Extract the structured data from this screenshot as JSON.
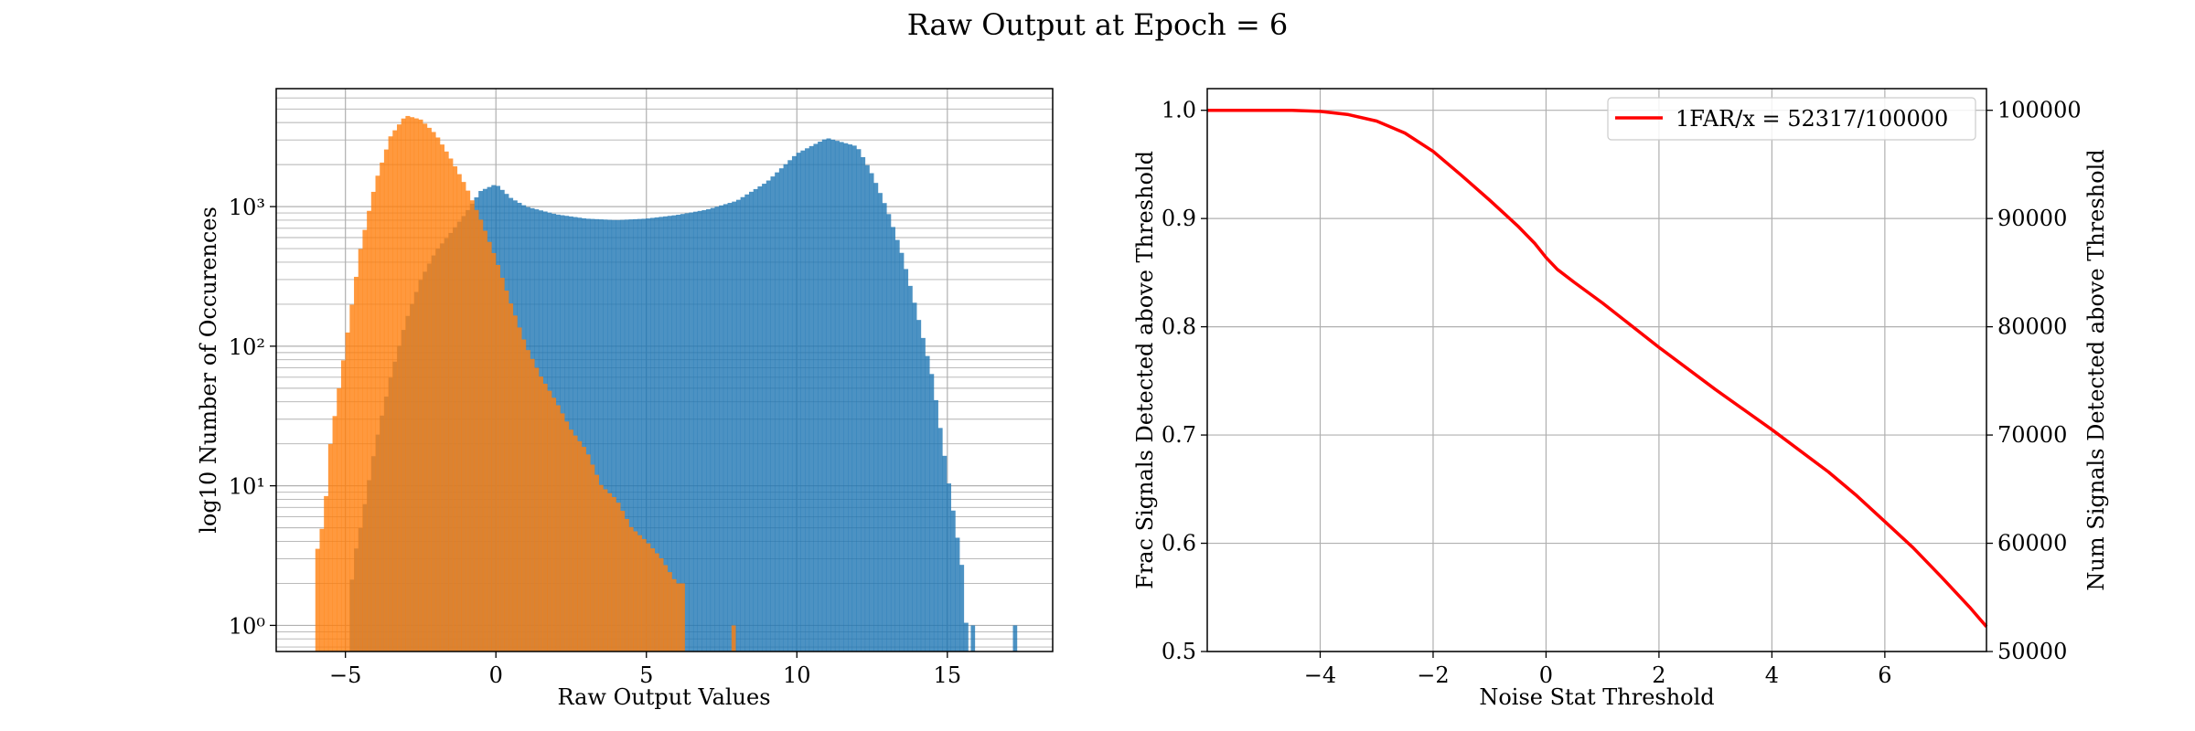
{
  "figure": {
    "title": "Raw Output at Epoch = 6"
  },
  "chart_data": [
    {
      "type": "bar",
      "subtype": "histogram",
      "xlabel": "Raw Output Values",
      "ylabel": "log10 Number of Occurences",
      "xlim": [
        -7.3,
        18.5
      ],
      "ylim": [
        0.65,
        7000
      ],
      "yscale": "log",
      "grid": true,
      "x_ticks": [
        -5,
        0,
        5,
        10,
        15
      ],
      "x_tick_labels": [
        "−5",
        "0",
        "5",
        "10",
        "15"
      ],
      "y_tick_values": [
        1,
        10,
        100,
        1000
      ],
      "y_tick_labels": [
        "10⁰",
        "10¹",
        "10²",
        "10³"
      ],
      "bin_range": [
        -6.0,
        17.4
      ],
      "bins": 164,
      "series": [
        {
          "color": "#1f77b4",
          "points": [
            [
              -5.0,
              0.0
            ],
            [
              -4.5,
              5
            ],
            [
              -4.0,
              20
            ],
            [
              -3.5,
              60
            ],
            [
              -3.0,
              150
            ],
            [
              -2.5,
              300
            ],
            [
              -2.0,
              480
            ],
            [
              -1.5,
              650
            ],
            [
              -1.0,
              900
            ],
            [
              -0.5,
              1300
            ],
            [
              0.0,
              1450
            ],
            [
              0.5,
              1150
            ],
            [
              1.0,
              1000
            ],
            [
              2.0,
              880
            ],
            [
              3.0,
              820
            ],
            [
              4.0,
              800
            ],
            [
              5.0,
              820
            ],
            [
              6.0,
              870
            ],
            [
              7.0,
              950
            ],
            [
              8.0,
              1100
            ],
            [
              9.0,
              1500
            ],
            [
              10.0,
              2400
            ],
            [
              11.0,
              3100
            ],
            [
              12.0,
              2700
            ],
            [
              12.5,
              1700
            ],
            [
              13.0,
              950
            ],
            [
              13.5,
              450
            ],
            [
              14.0,
              170
            ],
            [
              14.5,
              60
            ],
            [
              15.0,
              12
            ],
            [
              15.5,
              2.5
            ],
            [
              15.7,
              0.0
            ],
            [
              15.75,
              0.0
            ],
            [
              16.0,
              0.0
            ],
            [
              17.2,
              0.0
            ],
            [
              17.4,
              0.0
            ]
          ],
          "extra_bars": [
            [
              15.85,
              1
            ],
            [
              17.25,
              1
            ]
          ]
        },
        {
          "color": "#ff7f0e",
          "points": [
            [
              -6.0,
              3
            ],
            [
              -5.7,
              6
            ],
            [
              -5.5,
              20
            ],
            [
              -5.0,
              100
            ],
            [
              -4.5,
              500
            ],
            [
              -4.0,
              1500
            ],
            [
              -3.5,
              3200
            ],
            [
              -3.0,
              4500
            ],
            [
              -2.5,
              4200
            ],
            [
              -2.0,
              3300
            ],
            [
              -1.5,
              2200
            ],
            [
              -1.0,
              1400
            ],
            [
              -0.5,
              800
            ],
            [
              0.0,
              420
            ],
            [
              0.5,
              200
            ],
            [
              1.0,
              100
            ],
            [
              1.5,
              60
            ],
            [
              2.0,
              40
            ],
            [
              2.5,
              25
            ],
            [
              3.0,
              18
            ],
            [
              3.5,
              10
            ],
            [
              4.0,
              8
            ],
            [
              4.5,
              5
            ],
            [
              5.0,
              4
            ],
            [
              5.5,
              3
            ],
            [
              6.0,
              2
            ],
            [
              6.3,
              2
            ]
          ],
          "extra_bars": [
            [
              7.9,
              1
            ]
          ]
        }
      ]
    },
    {
      "type": "line",
      "xlabel": "Noise Stat Threshold",
      "ylabel": "Frac Signals Detected above Threshold",
      "y2label": "Num Signals Detected above Threshold",
      "xlim": [
        -6.0,
        7.8
      ],
      "ylim": [
        0.5,
        1.02
      ],
      "y2lim": [
        50000,
        102000
      ],
      "grid": true,
      "legend": "upper-right",
      "x_ticks": [
        -4,
        -2,
        0,
        2,
        4,
        6
      ],
      "x_tick_labels": [
        "−4",
        "−2",
        "0",
        "2",
        "4",
        "6"
      ],
      "y_ticks": [
        0.5,
        0.6,
        0.7,
        0.8,
        0.9,
        1.0
      ],
      "y_tick_labels": [
        "0.5",
        "0.6",
        "0.7",
        "0.8",
        "0.9",
        "1.0"
      ],
      "y2_ticks": [
        50000,
        60000,
        70000,
        80000,
        90000,
        100000
      ],
      "y2_tick_labels": [
        "50000",
        "60000",
        "70000",
        "80000",
        "90000",
        "100000"
      ],
      "series": [
        {
          "name": "1FAR/x = 52317/100000",
          "color": "#ff0000",
          "x": [
            -6.0,
            -5.0,
            -4.5,
            -4.0,
            -3.5,
            -3.0,
            -2.5,
            -2.0,
            -1.5,
            -1.0,
            -0.5,
            -0.2,
            0.0,
            0.2,
            0.5,
            1.0,
            2.0,
            3.0,
            4.0,
            5.0,
            5.5,
            6.0,
            6.5,
            7.0,
            7.5,
            7.8
          ],
          "y": [
            1.0,
            1.0,
            1.0,
            0.999,
            0.996,
            0.99,
            0.979,
            0.962,
            0.94,
            0.917,
            0.893,
            0.877,
            0.864,
            0.853,
            0.841,
            0.822,
            0.781,
            0.742,
            0.705,
            0.666,
            0.644,
            0.62,
            0.596,
            0.569,
            0.541,
            0.523
          ]
        }
      ]
    }
  ]
}
